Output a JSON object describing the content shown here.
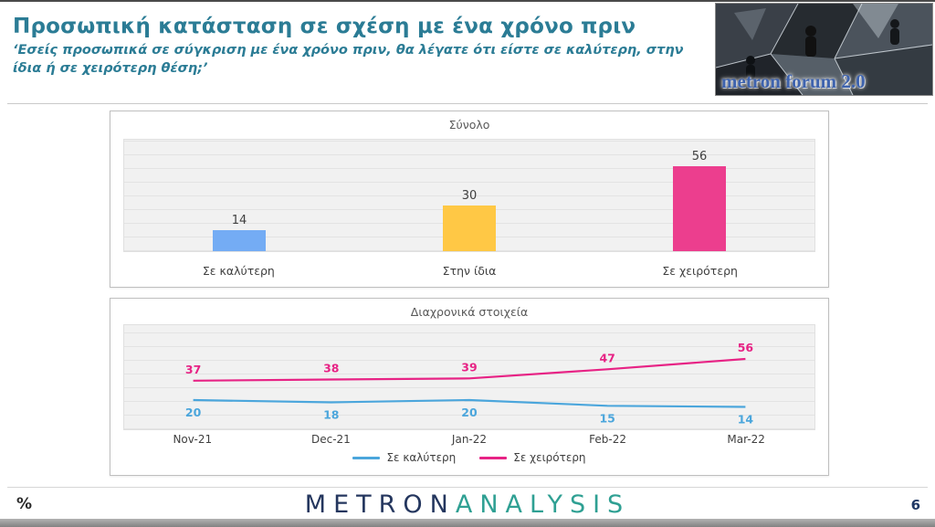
{
  "header": {
    "title": "Προσωπική κατάσταση σε σχέση με ένα χρόνο πριν",
    "subtitle": "‘Εσείς προσωπικά σε σύγκριση με ένα χρόνο πριν, θα λέγατε ότι είστε σε καλύτερη, στην ίδια ή σε χειρότερη θέση;’",
    "logo_text": "metron forum 2.0"
  },
  "chart_data": [
    {
      "type": "bar",
      "title": "Σύνολο",
      "categories": [
        "Σε καλύτερη",
        "Στην ίδια",
        "Σε χειρότερη"
      ],
      "values": [
        14,
        30,
        56
      ],
      "bar_colors": [
        "#74ACF4",
        "#FFC845",
        "#EC3E8E"
      ],
      "ylim": [
        0,
        60
      ],
      "grid": true,
      "value_labels": true,
      "legend_position": "none"
    },
    {
      "type": "line",
      "title": "Διαχρονικά στοιχεία",
      "x": [
        "Nov-21",
        "Dec-21",
        "Jan-22",
        "Feb-22",
        "Mar-22"
      ],
      "series": [
        {
          "name": "Σε καλύτερη",
          "values": [
            20,
            18,
            20,
            15,
            14
          ],
          "color": "#4BA6DC",
          "label_position": "below"
        },
        {
          "name": "Σε χειρότερη",
          "values": [
            37,
            38,
            39,
            47,
            56
          ],
          "color": "#E72385",
          "label_position": "above"
        }
      ],
      "ylim": [
        0,
        80
      ],
      "grid": true,
      "legend_position": "bottom"
    }
  ],
  "footer": {
    "percent_symbol": "%",
    "brand_part1": "METRON",
    "brand_part2": "ANALYSIS",
    "page_number": "6"
  },
  "colors": {
    "title_teal": "#2B7C95",
    "brand_navy": "#24365E",
    "brand_teal": "#2FA093",
    "bar_blue": "#74ACF4",
    "bar_yellow": "#FFC845",
    "bar_pink": "#EC3E8E",
    "line_blue": "#4BA6DC",
    "line_pink": "#E72385"
  }
}
